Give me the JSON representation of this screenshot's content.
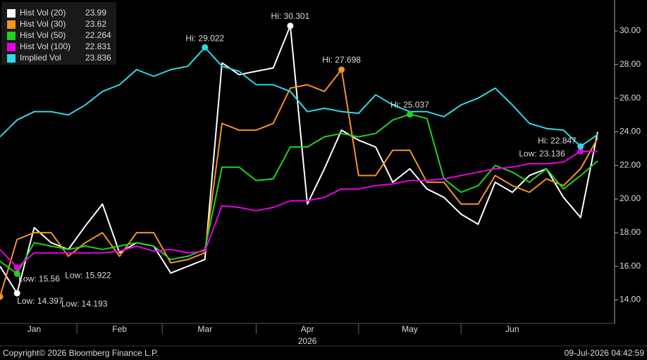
{
  "chart_data": {
    "type": "line",
    "categories": [
      null,
      null,
      "Jan",
      null,
      null,
      null,
      null,
      "Feb",
      null,
      null,
      null,
      null,
      "Mar",
      null,
      null,
      null,
      null,
      null,
      "Apr",
      null,
      null,
      null,
      null,
      null,
      "May",
      null,
      null,
      null,
      null,
      null,
      "Jun",
      null,
      null,
      null,
      null,
      null
    ],
    "year_label": "2026",
    "series": [
      {
        "name": "Hist Vol (20)",
        "color": "#ffffff",
        "high_label": "Hi: 30.301",
        "low_label": "Low: 14.397",
        "values": [
          16.0,
          14.397,
          18.3,
          17.4,
          17.0,
          18.4,
          19.7,
          16.8,
          17.4,
          17.2,
          15.6,
          16.0,
          16.4,
          28.1,
          27.4,
          27.6,
          27.8,
          30.301,
          19.7,
          21.8,
          24.1,
          23.5,
          23.1,
          21.0,
          21.8,
          20.6,
          20.1,
          19.1,
          18.5,
          21.0,
          20.4,
          21.4,
          21.8,
          20.1,
          18.9,
          23.99
        ]
      },
      {
        "name": "Hist Vol (30)",
        "color": "#f7941d",
        "high_label": "Hi: 27.698",
        "low_label": "Low: 14.193",
        "values": [
          14.193,
          17.6,
          18.0,
          18.0,
          16.6,
          17.4,
          18.0,
          16.6,
          18.0,
          18.0,
          16.2,
          16.4,
          16.8,
          24.5,
          24.1,
          24.1,
          24.5,
          26.6,
          26.8,
          26.4,
          27.698,
          21.4,
          21.4,
          22.9,
          22.9,
          21.0,
          21.0,
          19.7,
          19.7,
          21.4,
          20.8,
          20.4,
          21.2,
          20.8,
          21.8,
          23.62
        ]
      },
      {
        "name": "Hist Vol (50)",
        "color": "#1fd21f",
        "high_label": "Hi: 25.037",
        "low_label": "Low: 15.56",
        "values": [
          16.3,
          15.56,
          17.4,
          17.2,
          17.0,
          17.2,
          17.0,
          17.2,
          17.4,
          17.2,
          16.4,
          16.6,
          17.0,
          21.9,
          21.9,
          21.1,
          21.2,
          23.1,
          23.1,
          23.7,
          23.9,
          23.7,
          23.9,
          24.7,
          25.037,
          24.8,
          21.2,
          20.4,
          20.8,
          22.0,
          21.6,
          21.0,
          21.8,
          20.6,
          21.4,
          22.264
        ]
      },
      {
        "name": "Hist Vol (100)",
        "color": "#e600e6",
        "high_label": "Hi: 22.847",
        "low_label": "Low: 15.922",
        "values": [
          17.0,
          15.922,
          16.8,
          16.8,
          16.8,
          16.8,
          16.8,
          16.9,
          17.2,
          16.9,
          17.0,
          16.8,
          16.9,
          19.6,
          19.5,
          19.3,
          19.5,
          19.9,
          19.9,
          20.1,
          20.6,
          20.6,
          20.8,
          20.9,
          21.1,
          21.1,
          21.2,
          21.4,
          21.6,
          21.8,
          21.9,
          22.1,
          22.1,
          22.2,
          22.847,
          22.831
        ]
      },
      {
        "name": "Implied Vol",
        "color": "#2fd9e6",
        "high_label": "Hi: 29.022",
        "low_label": "Low: 23.136",
        "values": [
          23.7,
          24.7,
          25.2,
          25.2,
          25.0,
          25.6,
          26.4,
          26.8,
          27.7,
          27.3,
          27.7,
          27.9,
          29.022,
          27.9,
          27.6,
          26.8,
          26.8,
          26.4,
          25.2,
          25.4,
          25.2,
          25.1,
          26.2,
          25.6,
          25.2,
          25.2,
          24.9,
          25.6,
          26.0,
          26.6,
          25.6,
          24.5,
          24.2,
          24.1,
          23.136,
          23.836
        ]
      }
    ],
    "ylim": [
      12.6,
      31.84
    ],
    "yticks": [
      {
        "value": 14,
        "label": "14.00"
      },
      {
        "value": 16,
        "label": "16.00"
      },
      {
        "value": 18,
        "label": "18.00"
      },
      {
        "value": 20,
        "label": "20.00"
      },
      {
        "value": 22,
        "label": "22.00"
      },
      {
        "value": 24,
        "label": "24.00"
      },
      {
        "value": 26,
        "label": "26.00"
      },
      {
        "value": 28,
        "label": "28.00"
      },
      {
        "value": 30,
        "label": "30.00"
      }
    ],
    "grid": false,
    "legend": "top-left",
    "footer_left": "Copyright© 2026 Bloomberg Finance L.P.",
    "footer_right": "09-Jul-2026 04:42:59"
  }
}
